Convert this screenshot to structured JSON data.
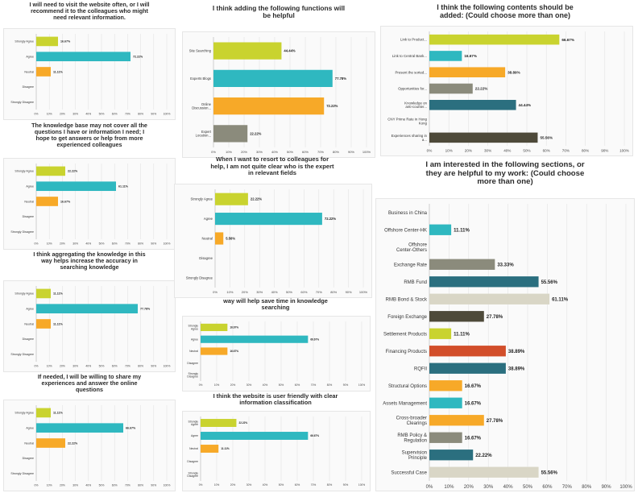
{
  "charts": [
    {
      "title": "I will need to visit the website often, or I will\nrecommend it to the colleagues who might\nneed relevant information.",
      "chart_data": {
        "type": "bar",
        "orientation": "horizontal",
        "categories": [
          "Strongly Agree",
          "Agree",
          "Neutral",
          "Disagree",
          "Strongly Disagree"
        ],
        "values": [
          16.67,
          72.22,
          11.11,
          null,
          null
        ],
        "value_labels": [
          "16.67%",
          "72.22%",
          "11.11%",
          "",
          ""
        ],
        "xlim": [
          0,
          100
        ],
        "xticks": [
          "0%",
          "10%",
          "20%",
          "30%",
          "40%",
          "50%",
          "60%",
          "70%",
          "80%",
          "90%",
          "100%"
        ]
      }
    },
    {
      "title": "The knowledge base may not cover all the\nquestions I have or information I need; I\nhope to get answers or help from more\nexperienced colleagues",
      "chart_data": {
        "type": "bar",
        "orientation": "horizontal",
        "categories": [
          "Strongly Agree",
          "Agree",
          "Neutral",
          "Disagree",
          "Strongly Disagree"
        ],
        "values": [
          22.22,
          61.11,
          16.67,
          null,
          null
        ],
        "value_labels": [
          "22.22%",
          "61.11%",
          "16.67%",
          "",
          ""
        ],
        "xlim": [
          0,
          100
        ],
        "xticks": [
          "0%",
          "10%",
          "20%",
          "30%",
          "40%",
          "50%",
          "60%",
          "70%",
          "80%",
          "90%",
          "100%"
        ]
      }
    },
    {
      "title": "I think aggregating the knowledge in this\nway helps increase the accuracy in\nsearching knowledge",
      "chart_data": {
        "type": "bar",
        "orientation": "horizontal",
        "categories": [
          "Strongly Agree",
          "Agree",
          "Neutral",
          "Disagree",
          "Strongly Disagree"
        ],
        "values": [
          11.11,
          77.78,
          11.11,
          null,
          null
        ],
        "value_labels": [
          "11.11%",
          "77.78%",
          "11.11%",
          "",
          ""
        ],
        "xlim": [
          0,
          100
        ],
        "xticks": [
          "0%",
          "10%",
          "20%",
          "30%",
          "40%",
          "50%",
          "60%",
          "70%",
          "80%",
          "90%",
          "100%"
        ]
      }
    },
    {
      "title": "If needed, I will be willing to share my\nexperiences and answer the online\nquestions",
      "chart_data": {
        "type": "bar",
        "orientation": "horizontal",
        "categories": [
          "Strongly Agree",
          "Agree",
          "Neutral",
          "Disagree",
          "Strongly Disagree"
        ],
        "values": [
          11.11,
          66.67,
          22.22,
          null,
          null
        ],
        "value_labels": [
          "11.11%",
          "66.67%",
          "22.22%",
          "",
          ""
        ],
        "xlim": [
          0,
          100
        ],
        "xticks": [
          "0%",
          "10%",
          "20%",
          "30%",
          "40%",
          "50%",
          "60%",
          "70%",
          "80%",
          "90%",
          "100%"
        ]
      }
    },
    {
      "title": "I think adding the following functions will\nbe helpful",
      "chart_data": {
        "type": "bar",
        "orientation": "horizontal",
        "categories": [
          "Site Searching",
          "Experts Blogs",
          "Online Discussion...",
          "Expert Location..."
        ],
        "values": [
          44.44,
          77.78,
          72.22,
          22.22
        ],
        "value_labels": [
          "44.44%",
          "77.78%",
          "72.22%",
          "22.22%"
        ],
        "xlim": [
          0,
          100
        ],
        "xticks": [
          "0%",
          "10%",
          "20%",
          "30%",
          "40%",
          "50%",
          "60%",
          "70%",
          "80%",
          "90%",
          "100%"
        ]
      }
    },
    {
      "title": "When I want to resort to colleagues for\nhelp, I am not quite clear who is the expert\nin relevant fields",
      "chart_data": {
        "type": "bar",
        "orientation": "horizontal",
        "categories": [
          "Strongly Agree",
          "Agree",
          "Neutral",
          "Disagree",
          "Strongly Disagree"
        ],
        "values": [
          22.22,
          72.22,
          5.56,
          null,
          null
        ],
        "value_labels": [
          "22.22%",
          "72.22%",
          "5.56%",
          "",
          ""
        ],
        "xlim": [
          0,
          100
        ],
        "xticks": [
          "0%",
          "10%",
          "20%",
          "30%",
          "40%",
          "50%",
          "60%",
          "70%",
          "80%",
          "90%",
          "100%"
        ]
      }
    },
    {
      "title": "way will help save time in knowledge\nsearching",
      "chart_data": {
        "type": "bar",
        "orientation": "horizontal",
        "categories": [
          "Strongly Agree",
          "Agree",
          "Neutral",
          "Disagree",
          "Strongly Disagree"
        ],
        "values": [
          16.67,
          66.67,
          16.67,
          null,
          null
        ],
        "value_labels": [
          "16.67%",
          "66.67%",
          "16.67%",
          "",
          ""
        ],
        "xlim": [
          0,
          100
        ],
        "xticks": [
          "0%",
          "10%",
          "20%",
          "30%",
          "40%",
          "50%",
          "60%",
          "70%",
          "80%",
          "90%",
          "100%"
        ]
      }
    },
    {
      "title": "I think the website is user friendly with clear\ninformation classification",
      "chart_data": {
        "type": "bar",
        "orientation": "horizontal",
        "categories": [
          "Strongly Agree",
          "Agree",
          "Neutral",
          "Disagree",
          "Strongly Disagree"
        ],
        "values": [
          22.22,
          66.67,
          11.11,
          null,
          null
        ],
        "value_labels": [
          "22.22%",
          "66.67%",
          "11.11%",
          "",
          ""
        ],
        "xlim": [
          0,
          100
        ],
        "xticks": [
          "0%",
          "10%",
          "20%",
          "30%",
          "40%",
          "50%",
          "60%",
          "70%",
          "80%",
          "90%",
          "100%"
        ]
      }
    },
    {
      "title": "I think the following contents should be\nadded: (Could choose more than one)",
      "chart_data": {
        "type": "bar",
        "orientation": "horizontal",
        "categories": [
          "Link to Product...",
          "Link to Central Bank...",
          "Present the sorted...",
          "Opportunities for...",
          "Knowledge on anti-counter...",
          "CNY Prime Rate in Hong Kong",
          "Experiences sharing in a..."
        ],
        "values": [
          66.67,
          16.67,
          38.89,
          22.22,
          44.44,
          null,
          55.56
        ],
        "value_labels": [
          "66.67%",
          "16.67%",
          "38.89%",
          "22.22%",
          "44.44%",
          "",
          "55.56%"
        ],
        "xlim": [
          0,
          100
        ],
        "xticks": [
          "0%",
          "10%",
          "20%",
          "30%",
          "40%",
          "50%",
          "60%",
          "70%",
          "80%",
          "90%",
          "100%"
        ]
      }
    },
    {
      "title": "I am interested in the following sections, or\nthey are helpful to my work: (Could choose\nmore than one)",
      "chart_data": {
        "type": "bar",
        "orientation": "horizontal",
        "categories": [
          "Business in China",
          "Offshore Center-HK",
          "Offshore Center-Others",
          "Exchange Rate",
          "RMB Fund",
          "RMB Bond & Stock",
          "Foreign Exchange",
          "Settlement Products",
          "Financing Products",
          "RQFII",
          "Structural Options",
          "Assets Management",
          "Cross-broader Clearings",
          "RMB Policy & Regulation",
          "Supervision Principle",
          "Successful Case"
        ],
        "values": [
          null,
          11.11,
          null,
          33.33,
          55.56,
          61.11,
          27.78,
          11.11,
          38.89,
          38.89,
          16.67,
          16.67,
          27.78,
          16.67,
          22.22,
          55.56
        ],
        "value_labels": [
          "",
          "11.11%",
          "",
          "33.33%",
          "55.56%",
          "61.11%",
          "27.78%",
          "11.11%",
          "38.89%",
          "38.89%",
          "16.67%",
          "16.67%",
          "27.78%",
          "16.67%",
          "22.22%",
          "55.56%"
        ],
        "xlim": [
          0,
          100
        ],
        "xticks": [
          "0%",
          "10%",
          "20%",
          "30%",
          "40%",
          "50%",
          "60%",
          "70%",
          "80%",
          "90%",
          "100%"
        ]
      }
    }
  ],
  "palette": [
    "#c9d32f",
    "#2fb8c0",
    "#f7a928",
    "#8b8b7c",
    "#2b6f7f",
    "#4e4a3a",
    "#d9d6c6",
    "#d24e2a"
  ]
}
